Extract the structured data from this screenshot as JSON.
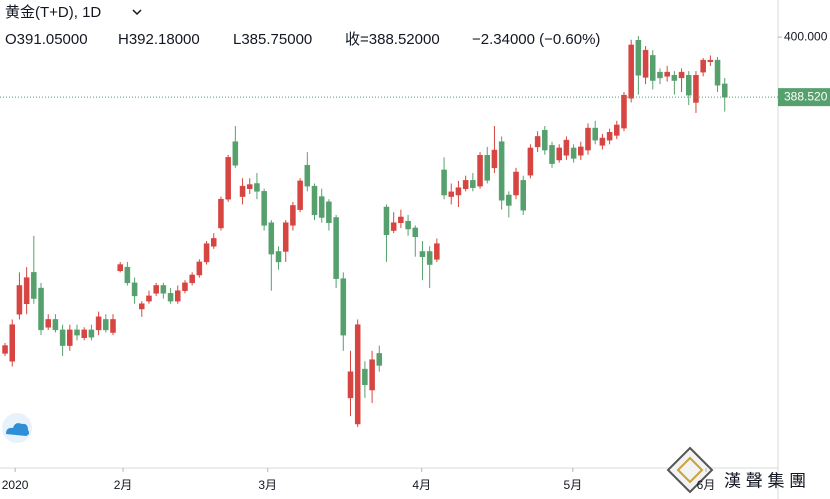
{
  "chart_data": {
    "type": "candlestick",
    "title": "黄金(T+D), 1D",
    "ohlc_labels": [
      "O391.05000",
      "H392.18000",
      "L385.75000",
      "收=388.52000",
      "−2.34000 (−0.60%)"
    ],
    "up_color": "#d64541",
    "down_color": "#56a06e",
    "open": [
      339.5,
      338,
      347,
      349,
      355,
      352,
      344.5,
      346,
      344,
      341,
      344,
      342.5,
      344,
      344,
      346,
      343.5,
      355.3,
      356,
      353,
      348,
      349.5,
      351,
      352.5,
      351,
      349.5,
      351.5,
      353,
      354.5,
      357,
      360,
      363.5,
      369,
      380,
      369.5,
      371,
      372,
      370.5,
      364.5,
      359,
      359,
      364,
      367,
      375.5,
      371.5,
      369.5,
      368.5,
      365.5,
      353.8,
      331,
      326,
      336.5,
      332.5,
      339.5,
      367.5,
      363,
      364.5,
      364.8,
      363.5,
      359,
      359,
      357.5,
      374.6,
      369.5,
      369.8,
      371,
      372.6,
      371.5,
      377.4,
      375,
      380,
      369.8,
      369.8,
      372.6,
      373.6,
      379,
      382.2,
      379.3,
      376.5,
      377.4,
      378.8,
      377.4,
      378.4,
      382.6,
      379.3,
      380.3,
      381.2,
      382.6,
      388.3,
      399.4,
      392.3,
      396.5,
      393.3,
      392.5,
      392.7,
      392.2,
      392.7,
      387.5,
      393.3,
      395.3,
      395.6,
      391.05
    ],
    "high": [
      341.5,
      346,
      355,
      356,
      362,
      353,
      347,
      347,
      345,
      345,
      345,
      344.5,
      345,
      347.5,
      347,
      347,
      357,
      357,
      354,
      349.5,
      351.5,
      353,
      353,
      352,
      352.5,
      353.5,
      355,
      357.5,
      361,
      362.5,
      369.5,
      377.5,
      383,
      373,
      373,
      374,
      371,
      365,
      360,
      365,
      368.5,
      373,
      378,
      372,
      371,
      369,
      366,
      355,
      340,
      346,
      338,
      340,
      341,
      368,
      366.5,
      367,
      366,
      364,
      361,
      360,
      361.5,
      377,
      372,
      372.5,
      373.5,
      374,
      378,
      379,
      383,
      381,
      370.5,
      375,
      373.5,
      379.5,
      382,
      383,
      380,
      379.5,
      381,
      379.5,
      380,
      383.5,
      384,
      381.5,
      382.5,
      384,
      389.5,
      399.5,
      400.2,
      398.3,
      397.5,
      394,
      394.5,
      393.5,
      394,
      393.5,
      393.5,
      396,
      396.5,
      396.2,
      392.18
    ],
    "low": [
      339,
      337,
      346,
      347,
      349,
      343,
      344,
      343.5,
      339,
      340,
      342,
      342,
      342,
      343,
      343.5,
      343,
      355,
      352.5,
      349,
      346.5,
      349,
      350.5,
      350,
      349,
      349,
      351,
      352.5,
      354,
      356.5,
      359.5,
      363,
      368.5,
      375,
      368,
      370,
      369,
      363,
      351.5,
      355.5,
      357,
      363,
      366.5,
      370.5,
      365,
      364.5,
      363,
      352,
      340,
      327.5,
      325.4,
      331,
      330,
      336,
      357,
      362.5,
      363.5,
      362,
      358,
      353.5,
      352,
      357,
      369,
      368,
      367.5,
      370.5,
      370.5,
      371,
      372,
      374,
      367,
      365.5,
      369,
      366,
      373,
      378,
      377.5,
      375,
      376,
      376.5,
      376,
      376.5,
      377.5,
      379.5,
      378.5,
      379.5,
      380.5,
      382,
      387.5,
      389,
      391,
      390,
      391,
      391.5,
      389,
      389.5,
      387,
      385.5,
      392.5,
      394.5,
      389.5,
      385.75
    ],
    "close": [
      341,
      345,
      352.5,
      354,
      350,
      344,
      346,
      344,
      341,
      344,
      343,
      344,
      342.6,
      346.5,
      344,
      346,
      356.5,
      353,
      350.5,
      349,
      350.5,
      352.5,
      351,
      349.5,
      351.5,
      353,
      354.5,
      357,
      360.5,
      361.5,
      369,
      377,
      375.5,
      371.5,
      371.8,
      370.5,
      364,
      358.5,
      357,
      364.5,
      367.8,
      372.5,
      371.5,
      366,
      365.5,
      364.5,
      353.8,
      343,
      336,
      345,
      333.5,
      338.3,
      337.2,
      362.2,
      364.5,
      365.6,
      363.3,
      361.8,
      358,
      356.5,
      360.5,
      369.8,
      370.4,
      371.2,
      372.6,
      371.2,
      377.4,
      372.6,
      378.4,
      368.8,
      367.8,
      374.2,
      366.9,
      378.8,
      381,
      378.4,
      375.8,
      378.8,
      380.3,
      376.8,
      379,
      382.6,
      380.3,
      380.7,
      381.8,
      383.2,
      388.9,
      398.5,
      392.7,
      397.5,
      391.7,
      392.2,
      393.3,
      391.7,
      393.3,
      388.9,
      392.7,
      395.6,
      395.6,
      390.8,
      388.52
    ],
    "last_price": {
      "value": 388.52,
      "label": "388.520"
    },
    "xlim": [
      -0.7,
      107.4
    ],
    "ylim": [
      317.2,
      407.1
    ],
    "xticks": [
      {
        "value": 1.4,
        "label": "2020"
      },
      {
        "value": 16.4,
        "label": "2月"
      },
      {
        "value": 36.5,
        "label": "3月"
      },
      {
        "value": 57.9,
        "label": "4月"
      },
      {
        "value": 78.9,
        "label": "5月"
      },
      {
        "value": 97.4,
        "label": "6月"
      }
    ],
    "yticks": [
      {
        "value": 400,
        "label": "400.000"
      }
    ],
    "watermark": "漢 聲 集 團"
  }
}
